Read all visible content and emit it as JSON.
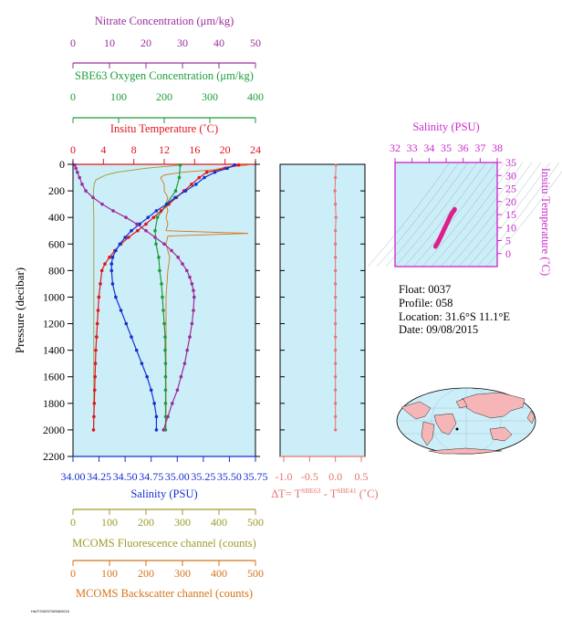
{
  "info": {
    "float": "Float:  0037",
    "profile": "Profile:  058",
    "location": "Location:  31.6°S  11.1°E",
    "date": "Date:  09/08/2015"
  },
  "footer_text": "HA/TS/0037/0058/2015",
  "colors": {
    "panel_bg": "#cceef8",
    "nitrate": "#9b2d9b",
    "oxygen": "#1f9c3a",
    "temperature": "#e0151b",
    "salinity": "#1530d0",
    "fluorescence": "#9c9c2a",
    "backscatter": "#d5741a",
    "delta_t": "#e87070",
    "ts_trace": "#dd1f8c",
    "ts_axis": "#cc2bcc"
  },
  "chart_data": [
    {
      "type": "line",
      "panel": "main-profile",
      "axes": {
        "pressure": {
          "label": "Pressure (decibar)",
          "lim": [
            0,
            2200
          ],
          "inverted": true,
          "ticks": [
            0,
            200,
            400,
            600,
            800,
            1000,
            1200,
            1400,
            1600,
            1800,
            2000,
            2200
          ]
        },
        "nitrate": {
          "label": "Nitrate Concentration (μm/kg)",
          "lim": [
            0,
            50
          ],
          "ticks": [
            0,
            10,
            20,
            30,
            40,
            50
          ]
        },
        "oxygen": {
          "label": "SBE63 Oxygen Concentration (μm/kg)",
          "lim": [
            0,
            400
          ],
          "ticks": [
            0,
            100,
            200,
            300,
            400
          ]
        },
        "temperature": {
          "label": "Insitu Temperature (˚C)",
          "lim": [
            0,
            24
          ],
          "ticks": [
            0,
            4,
            8,
            12,
            16,
            20,
            24
          ]
        },
        "salinity": {
          "label": "Salinity (PSU)",
          "lim": [
            34.0,
            35.75
          ],
          "ticks": [
            "34.00",
            "34.25",
            "34.50",
            "34.75",
            "35.00",
            "35.25",
            "35.50",
            "35.75"
          ]
        },
        "fluorescence": {
          "label": "MCOMS Fluorescence channel (counts)",
          "lim": [
            0,
            500
          ],
          "ticks": [
            0,
            100,
            200,
            300,
            400,
            500
          ]
        },
        "backscatter": {
          "label": "MCOMS Backscatter channel (counts)",
          "lim": [
            0,
            500
          ],
          "ticks": [
            0,
            100,
            200,
            300,
            400,
            500
          ]
        }
      },
      "series": [
        {
          "name": "Nitrate Concentration",
          "axis": "nitrate",
          "pressure": [
            5,
            30,
            60,
            100,
            150,
            200,
            250,
            300,
            350,
            400,
            450,
            500,
            550,
            600,
            650,
            700,
            750,
            800,
            850,
            900,
            950,
            1000,
            1100,
            1200,
            1300,
            1400,
            1500,
            1600,
            1700,
            1800,
            1900,
            2000
          ],
          "values": [
            0.5,
            0.8,
            1.2,
            1.8,
            2.5,
            3.5,
            5.5,
            8.0,
            11.0,
            14.5,
            17.5,
            20.0,
            22.5,
            25.0,
            27.0,
            28.8,
            30.0,
            31.2,
            32.0,
            32.6,
            33.0,
            33.2,
            33.0,
            32.6,
            32.0,
            31.3,
            30.6,
            29.6,
            28.6,
            27.2,
            26.0,
            24.8
          ]
        },
        {
          "name": "SBE63 Oxygen Concentration",
          "axis": "oxygen",
          "pressure": [
            5,
            100,
            200,
            300,
            400,
            500,
            600,
            700,
            800,
            900,
            1000,
            1100,
            1200,
            1300,
            1400,
            1500,
            1600,
            1700,
            1800,
            1900,
            2000
          ],
          "values": [
            235,
            233,
            225,
            205,
            185,
            180,
            182,
            188,
            190,
            194,
            196,
            198,
            200,
            202,
            202,
            203,
            203,
            203,
            203,
            203,
            203
          ]
        },
        {
          "name": "Insitu Temperature",
          "axis": "temperature",
          "pressure": [
            5,
            30,
            60,
            100,
            150,
            200,
            250,
            300,
            350,
            400,
            450,
            500,
            550,
            600,
            650,
            700,
            750,
            800,
            900,
            1000,
            1100,
            1200,
            1300,
            1400,
            1500,
            1600,
            1700,
            1800,
            1900,
            2000
          ],
          "values": [
            21.8,
            20.0,
            17.6,
            16.6,
            15.6,
            14.6,
            13.6,
            12.6,
            11.6,
            10.6,
            9.6,
            8.5,
            7.3,
            6.3,
            5.5,
            4.8,
            4.2,
            3.8,
            3.6,
            3.4,
            3.3,
            3.2,
            3.1,
            3.0,
            2.95,
            2.9,
            2.85,
            2.8,
            2.75,
            2.7
          ]
        },
        {
          "name": "Salinity",
          "axis": "salinity",
          "pressure": [
            5,
            30,
            60,
            100,
            150,
            200,
            250,
            300,
            350,
            400,
            450,
            500,
            550,
            600,
            650,
            700,
            750,
            800,
            900,
            1000,
            1100,
            1200,
            1300,
            1400,
            1500,
            1600,
            1700,
            1800,
            1900,
            2000
          ],
          "values": [
            35.55,
            35.48,
            35.36,
            35.26,
            35.18,
            35.08,
            34.98,
            34.9,
            34.8,
            34.72,
            34.64,
            34.56,
            34.5,
            34.45,
            34.41,
            34.38,
            34.37,
            34.37,
            34.38,
            34.41,
            34.46,
            34.51,
            34.56,
            34.61,
            34.66,
            34.71,
            34.75,
            34.78,
            34.8,
            34.8
          ]
        },
        {
          "name": "MCOMS Fluorescence channel",
          "axis": "fluorescence",
          "pressure": [
            5,
            30,
            60,
            80,
            100,
            120,
            150,
            200,
            300,
            400,
            500,
            600,
            800,
            1000,
            1200,
            1400,
            1600,
            1800,
            2000
          ],
          "values": [
            300,
            200,
            120,
            90,
            75,
            62,
            58,
            56,
            56,
            57,
            57,
            57,
            57,
            57,
            57,
            57,
            57,
            57,
            57
          ]
        },
        {
          "name": "MCOMS Backscatter channel",
          "axis": "backscatter",
          "pressure": [
            5,
            20,
            40,
            60,
            80,
            100,
            150,
            200,
            250,
            300,
            350,
            400,
            450,
            500,
            520,
            540,
            600,
            700,
            800,
            1000,
            1200,
            1400,
            1600,
            1800,
            2000
          ],
          "values": [
            480,
            420,
            390,
            300,
            250,
            240,
            250,
            250,
            260,
            255,
            260,
            255,
            260,
            255,
            480,
            260,
            255,
            265,
            260,
            255,
            255,
            255,
            255,
            255,
            255
          ]
        }
      ]
    },
    {
      "type": "line",
      "panel": "delta-t",
      "axes": {
        "delta_t": {
          "label": "∆T= T",
          "label_sup1": "SBE63",
          "label_mid": " - T",
          "label_sup2": "SBE41",
          "label_tail": " (˚C)",
          "lim": [
            -1.0,
            0.5
          ],
          "ticks": [
            "-1.0",
            "-0.5",
            "0.0",
            "0.5"
          ]
        },
        "pressure": {
          "lim": [
            0,
            2200
          ],
          "inverted": true
        }
      },
      "series": [
        {
          "name": "∆T",
          "axis": "delta_t",
          "pressure": [
            5,
            100,
            200,
            300,
            400,
            500,
            600,
            700,
            800,
            900,
            1000,
            1100,
            1200,
            1300,
            1400,
            1500,
            1600,
            1700,
            1800,
            1900,
            2000
          ],
          "values": [
            0.01,
            0.0,
            -0.01,
            0.0,
            0.01,
            0.0,
            0.0,
            0.0,
            0.0,
            0.0,
            0.0,
            0.0,
            0.0,
            0.0,
            0.0,
            0.0,
            0.0,
            0.0,
            0.0,
            0.0,
            0.0
          ]
        }
      ]
    },
    {
      "type": "scatter",
      "panel": "ts-diagram",
      "axes": {
        "salinity": {
          "label": "Salinity (PSU)",
          "lim": [
            32,
            38
          ],
          "ticks": [
            32,
            33,
            34,
            35,
            36,
            37,
            38
          ]
        },
        "temperature": {
          "label": "Insitu Temperature (˚C)",
          "lim": [
            -5,
            35
          ],
          "ticks": [
            0,
            5,
            10,
            15,
            20,
            25,
            30,
            35
          ]
        }
      },
      "series": [
        {
          "name": "T-S trace",
          "salinity": [
            34.38,
            34.42,
            34.48,
            34.56,
            34.66,
            34.78,
            34.9,
            35.02,
            35.12,
            35.22,
            35.35,
            35.45,
            35.5
          ],
          "temperature": [
            2.7,
            3.3,
            3.8,
            4.8,
            6.2,
            7.8,
            9.6,
            11.2,
            12.6,
            14.0,
            15.6,
            16.4,
            17.0
          ]
        }
      ]
    }
  ]
}
